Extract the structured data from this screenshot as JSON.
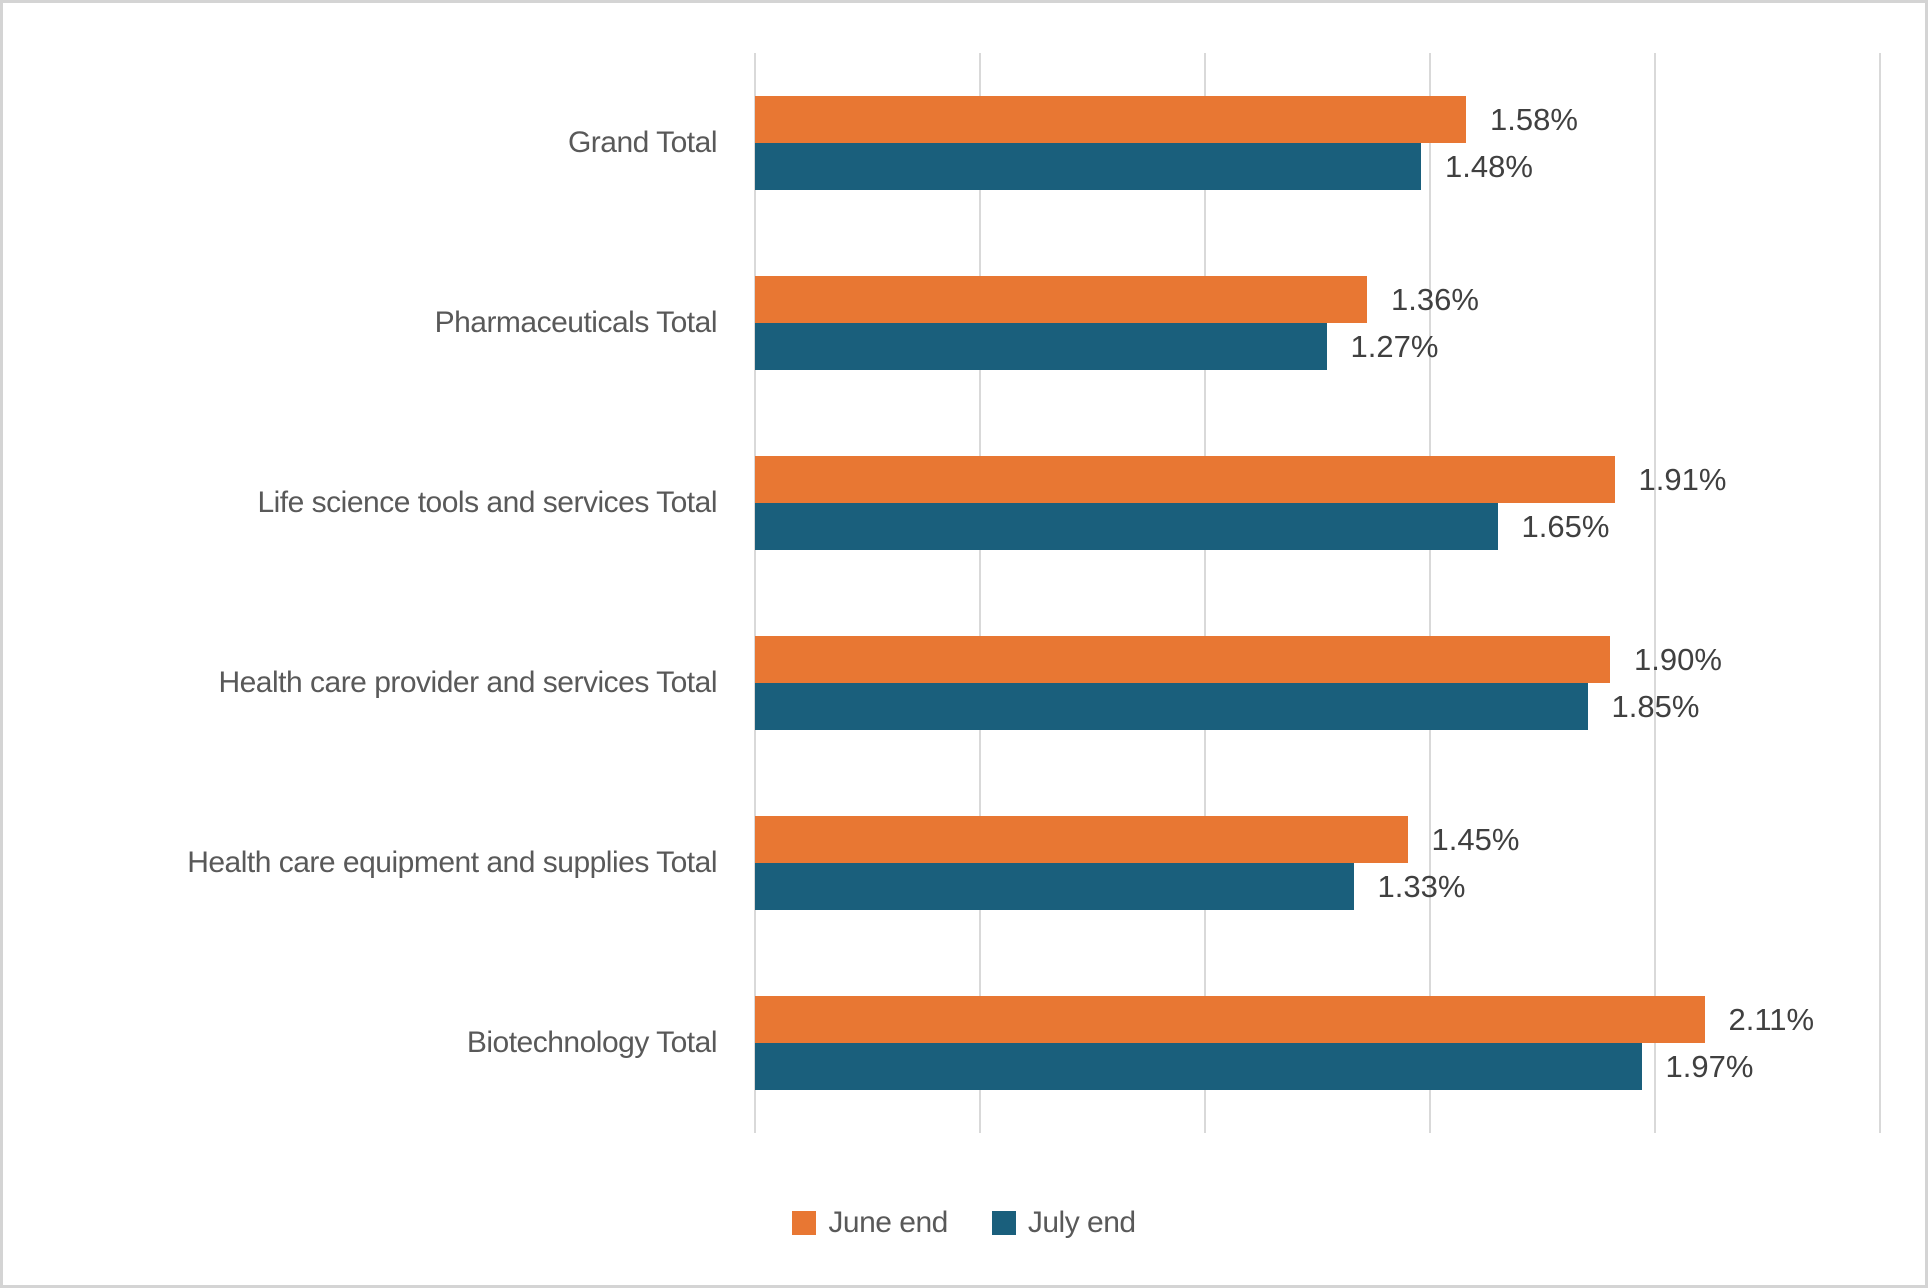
{
  "chart_data": {
    "type": "bar",
    "orientation": "horizontal",
    "title": "",
    "xlabel": "",
    "ylabel": "",
    "xlim": [
      0,
      2.5
    ],
    "gridline_interval": 0.5,
    "grid": true,
    "legend_position": "bottom",
    "categories": [
      "Grand Total",
      "Pharmaceuticals Total",
      "Life science tools and services Total",
      "Health care provider and services Total",
      "Health care equipment and supplies Total",
      "Biotechnology Total"
    ],
    "series": [
      {
        "name": "June end",
        "color": "#e87733",
        "values": [
          1.58,
          1.36,
          1.91,
          1.9,
          1.45,
          2.11
        ],
        "labels": [
          "1.58%",
          "1.36%",
          "1.91%",
          "1.90%",
          "1.45%",
          "2.11%"
        ]
      },
      {
        "name": "July end",
        "color": "#1a5f7c",
        "values": [
          1.48,
          1.27,
          1.65,
          1.85,
          1.33,
          1.97
        ],
        "labels": [
          "1.48%",
          "1.27%",
          "1.65%",
          "1.85%",
          "1.33%",
          "1.97%"
        ]
      }
    ],
    "colors": {
      "gridline": "#d9d9d9",
      "data_label_text": "#404040",
      "category_text": "#595959",
      "legend_text": "#595959",
      "frame_border": "#d4d4d4",
      "background": "#ffffff"
    }
  }
}
